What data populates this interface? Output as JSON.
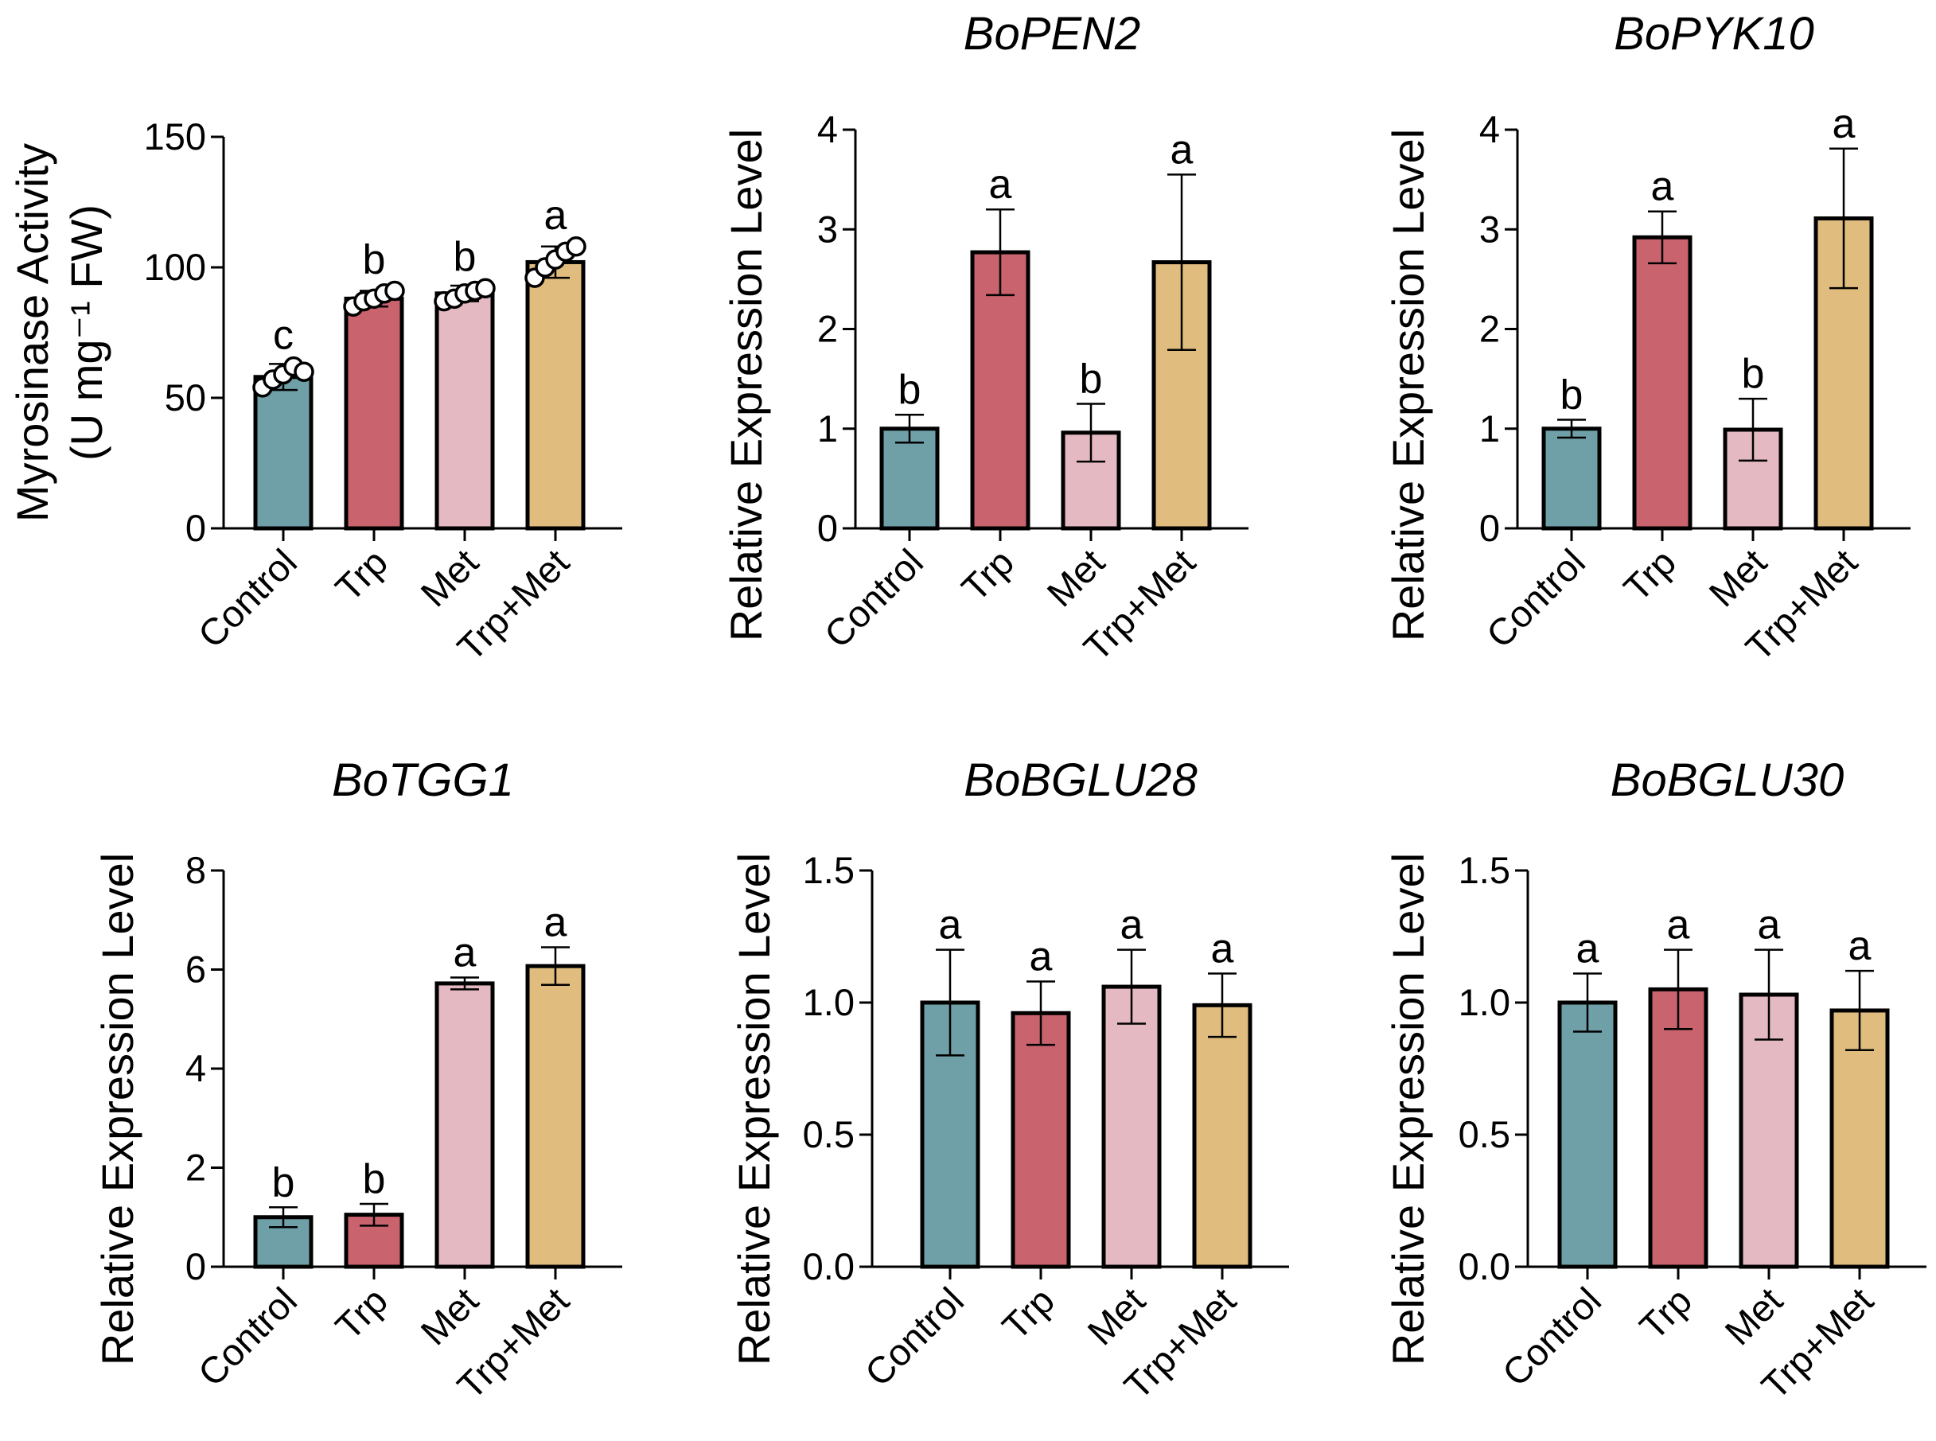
{
  "chart_data": [
    {
      "type": "bar",
      "title": "",
      "ylabel": [
        "Myrosinase Activity",
        "(U mg⁻¹ FW)"
      ],
      "xlabel": "",
      "categories": [
        "Control",
        "Trp",
        "Met",
        "Trp+Met"
      ],
      "values": [
        58,
        88,
        90,
        102
      ],
      "errors": [
        5,
        3,
        3,
        6
      ],
      "letters": [
        "c",
        "b",
        "b",
        "a"
      ],
      "points": [
        [
          54,
          57,
          59,
          62,
          60
        ],
        [
          85,
          87,
          88,
          90,
          91
        ],
        [
          87,
          88,
          90,
          91,
          92
        ],
        [
          96,
          100,
          103,
          106,
          108
        ]
      ],
      "ylim": [
        0,
        150
      ],
      "yticks": [
        "0",
        "50",
        "100",
        "150"
      ],
      "ytick_values": [
        0,
        50,
        100,
        150
      ]
    },
    {
      "type": "bar",
      "title": "BoPEN2",
      "ylabel": [
        "Relative Expression Level"
      ],
      "xlabel": "",
      "categories": [
        "Control",
        "Trp",
        "Met",
        "Trp+Met"
      ],
      "values": [
        1.0,
        2.77,
        0.96,
        2.67
      ],
      "errors": [
        0.14,
        0.43,
        0.29,
        0.88
      ],
      "letters": [
        "b",
        "a",
        "b",
        "a"
      ],
      "ylim": [
        0,
        4
      ],
      "yticks": [
        "0",
        "1",
        "2",
        "3",
        "4"
      ],
      "ytick_values": [
        0,
        1,
        2,
        3,
        4
      ]
    },
    {
      "type": "bar",
      "title": "BoPYK10",
      "ylabel": [
        "Relative Expression Level"
      ],
      "xlabel": "",
      "categories": [
        "Control",
        "Trp",
        "Met",
        "Trp+Met"
      ],
      "values": [
        1.0,
        2.92,
        0.99,
        3.11
      ],
      "errors": [
        0.09,
        0.26,
        0.31,
        0.7
      ],
      "letters": [
        "b",
        "a",
        "b",
        "a"
      ],
      "ylim": [
        0,
        4
      ],
      "yticks": [
        "0",
        "1",
        "2",
        "3",
        "4"
      ],
      "ytick_values": [
        0,
        1,
        2,
        3,
        4
      ]
    },
    {
      "type": "bar",
      "title": "BoTGG1",
      "ylabel": [
        "Relative Expression Level"
      ],
      "xlabel": "",
      "categories": [
        "Control",
        "Trp",
        "Met",
        "Trp+Met"
      ],
      "values": [
        1.0,
        1.05,
        5.72,
        6.07
      ],
      "errors": [
        0.2,
        0.22,
        0.12,
        0.38
      ],
      "letters": [
        "b",
        "b",
        "a",
        "a"
      ],
      "ylim": [
        0,
        8
      ],
      "yticks": [
        "0",
        "2",
        "4",
        "6",
        "8"
      ],
      "ytick_values": [
        0,
        2,
        4,
        6,
        8
      ]
    },
    {
      "type": "bar",
      "title": "BoBGLU28",
      "ylabel": [
        "Relative Expression Level"
      ],
      "xlabel": "",
      "categories": [
        "Control",
        "Trp",
        "Met",
        "Trp+Met"
      ],
      "values": [
        1.0,
        0.96,
        1.06,
        0.99
      ],
      "errors": [
        0.2,
        0.12,
        0.14,
        0.12
      ],
      "letters": [
        "a",
        "a",
        "a",
        "a"
      ],
      "ylim": [
        0,
        1.5
      ],
      "yticks": [
        "0.0",
        "0.5",
        "1.0",
        "1.5"
      ],
      "ytick_values": [
        0,
        0.5,
        1.0,
        1.5
      ]
    },
    {
      "type": "bar",
      "title": "BoBGLU30",
      "ylabel": [
        "Relative Expression Level"
      ],
      "xlabel": "",
      "categories": [
        "Control",
        "Trp",
        "Met",
        "Trp+Met"
      ],
      "values": [
        1.0,
        1.05,
        1.03,
        0.97
      ],
      "errors": [
        0.11,
        0.15,
        0.17,
        0.15
      ],
      "letters": [
        "a",
        "a",
        "a",
        "a"
      ],
      "ylim": [
        0,
        1.5
      ],
      "yticks": [
        "0.0",
        "0.5",
        "1.0",
        "1.5"
      ],
      "ytick_values": [
        0,
        0.5,
        1.0,
        1.5
      ]
    }
  ],
  "colors": {
    "bars": [
      "#6fa0a8",
      "#c9636e",
      "#e5b9c1",
      "#e0bc7e"
    ],
    "stroke": "#000000",
    "points_fill": "#ffffff"
  }
}
